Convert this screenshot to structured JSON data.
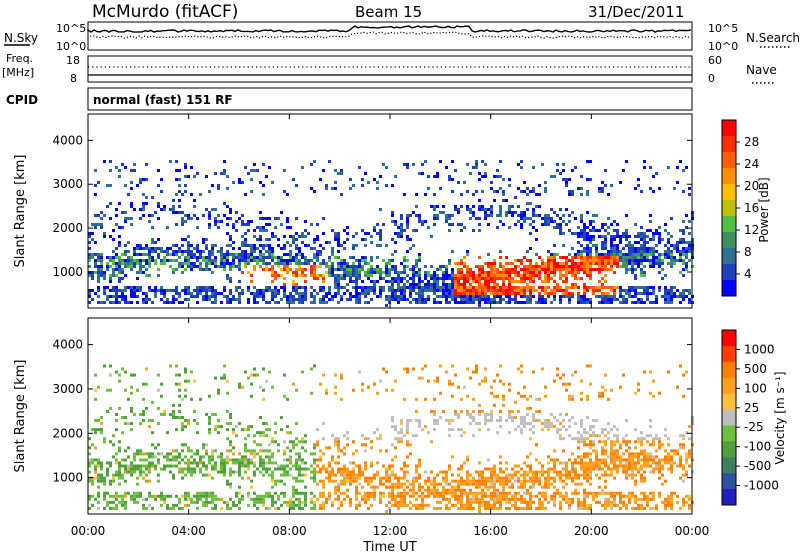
{
  "header": {
    "station": "McMurdo (fitACF)",
    "beam": "Beam 15",
    "date": "31/Dec/2011"
  },
  "nsky_panel": {
    "left_label": "N.Sky",
    "right_label": "N.Search",
    "left_ticks": [
      "10^5",
      "10^0"
    ],
    "right_ticks": [
      "10^5",
      "10^0"
    ]
  },
  "freq_panel": {
    "left_label_1": "Freq.",
    "left_label_2": "[MHz]",
    "right_label": "Nave",
    "left_ticks": [
      "18",
      "8"
    ],
    "right_ticks": [
      "60",
      "0"
    ]
  },
  "cpid_panel": {
    "label": "CPID",
    "text": "normal (fast) 151 RF"
  },
  "x_axis": {
    "label": "Time UT",
    "ticks": [
      "00:00",
      "04:00",
      "08:00",
      "12:00",
      "16:00",
      "20:00",
      "00:00"
    ]
  },
  "chart_data": [
    {
      "type": "heatmap",
      "name": "power",
      "xlabel": "Time UT",
      "ylabel": "Slant Range [km]",
      "xlim": [
        0,
        24
      ],
      "ylim": [
        180,
        4600
      ],
      "yticks": [
        1000,
        2000,
        3000,
        4000
      ],
      "colorbar_label": "Power [dB]",
      "colorbar_ticks": [
        "28",
        "24",
        "20",
        "16",
        "12",
        "8",
        "4"
      ],
      "colors": [
        "#0000ff",
        "#1f3fbf",
        "#2f6f8f",
        "#3f8f5f",
        "#4fbf3f",
        "#bfbf00",
        "#ffbf00",
        "#ff8f00",
        "#ff5f00",
        "#ff2f00",
        "#ff0000"
      ]
    },
    {
      "type": "heatmap",
      "name": "velocity",
      "xlabel": "Time UT",
      "ylabel": "Slant Range [km]",
      "xlim": [
        0,
        24
      ],
      "ylim": [
        180,
        4600
      ],
      "yticks": [
        1000,
        2000,
        3000,
        4000
      ],
      "colorbar_label": "Velocity [m s⁻¹]",
      "colorbar_ticks": [
        "1000",
        "500",
        "100",
        "25",
        "-25",
        "-100",
        "-500",
        "-1000"
      ],
      "colors": [
        "#1f1fbf",
        "#2f4f9f",
        "#3f7f5f",
        "#4f9f3f",
        "#6fbf3f",
        "#bfbfbf",
        "#ffbf3f",
        "#ff9f1f",
        "#ff7f00",
        "#ff3f00",
        "#ff0000"
      ]
    }
  ]
}
